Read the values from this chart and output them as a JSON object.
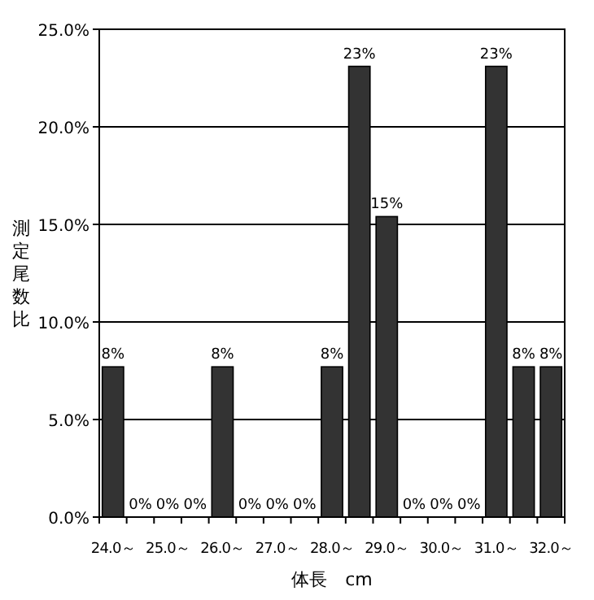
{
  "chart_data": {
    "type": "bar",
    "ylabel": "測定尾数比",
    "xlabel": "体長　cm",
    "categories": [
      "24.0～",
      null,
      "25.0～",
      null,
      "26.0～",
      null,
      "27.0～",
      null,
      "28.0～",
      null,
      "29.0～",
      null,
      "30.0～",
      null,
      "31.0～",
      null,
      "32.0～"
    ],
    "values": [
      7.7,
      0,
      0,
      0,
      7.7,
      0,
      0,
      0,
      7.7,
      23.1,
      15.4,
      0,
      0,
      0,
      23.1,
      7.7,
      7.7
    ],
    "value_labels": [
      "8%",
      "0%",
      "0%",
      "0%",
      "8%",
      "0%",
      "0%",
      "0%",
      "8%",
      "23%",
      "15%",
      "0%",
      "0%",
      "0%",
      "23%",
      "8%",
      "8%"
    ],
    "color": "#333333",
    "ylim": [
      0,
      25
    ],
    "yticks": [
      {
        "value": 0,
        "label": "0.0%"
      },
      {
        "value": 5,
        "label": "5.0%"
      },
      {
        "value": 10,
        "label": "10.0%"
      },
      {
        "value": 15,
        "label": "15.0%"
      },
      {
        "value": 20,
        "label": "20.0%"
      },
      {
        "value": 25,
        "label": "25.0%"
      }
    ],
    "grid": "y"
  }
}
